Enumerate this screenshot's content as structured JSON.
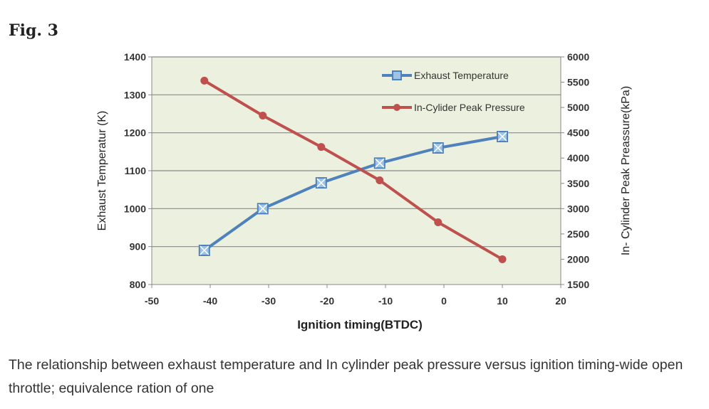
{
  "figure_label": "Fig. 3",
  "caption": "The relationship between exhaust temperature and In cylinder peak pressure versus ignition timing-wide open throttle; equivalence ration of one",
  "chart_data": {
    "type": "line",
    "xlabel": "Ignition timing(BTDC)",
    "ylabel": "Exhaust Temperatur (K)",
    "y2label": "In- Cylinder Peak Preassure(kPa)",
    "xlim": [
      -50,
      20
    ],
    "ylim": [
      800,
      1400
    ],
    "y2lim": [
      1500,
      6000
    ],
    "xticks": [
      -50,
      -40,
      -30,
      -20,
      -10,
      0,
      10,
      20
    ],
    "yticks": [
      800,
      900,
      1000,
      1100,
      1200,
      1300,
      1400
    ],
    "y2ticks": [
      1500,
      2000,
      2500,
      3000,
      3500,
      4000,
      4500,
      5000,
      5500,
      6000
    ],
    "grid": true,
    "legend_position": "top-right",
    "x": [
      -41,
      -31,
      -21,
      -11,
      -1,
      10
    ],
    "series": [
      {
        "name": "Exhaust Temperature",
        "axis": "left",
        "color": "#4F81BD",
        "marker": "square-x",
        "values": [
          890,
          1000,
          1068,
          1120,
          1160,
          1190
        ]
      },
      {
        "name": "In-Cylider Peak Pressure",
        "axis": "right",
        "color": "#C0504D",
        "marker": "circle",
        "values": [
          5530,
          4840,
          4220,
          3560,
          2730,
          2000
        ]
      }
    ]
  }
}
